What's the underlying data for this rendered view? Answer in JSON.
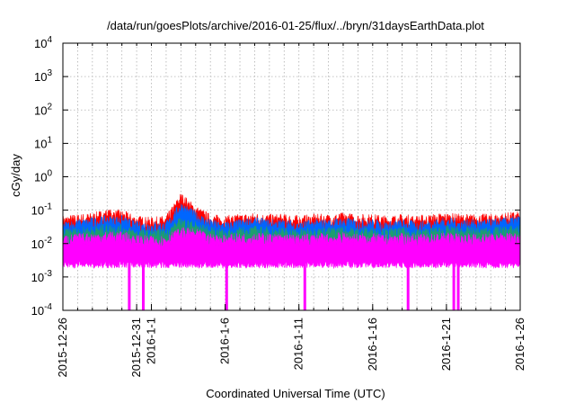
{
  "chart_data": {
    "type": "area",
    "title": "/data/run/goesPlots/archive/2016-01-25/flux/../bryn/31daysEarthData.plot",
    "xlabel": "Coordinated Universal Time (UTC)",
    "ylabel": "cGy/day",
    "y_scale": "log",
    "ylim": [
      0.0001,
      10000
    ],
    "xlim": [
      "2015-12-26",
      "2016-01-26"
    ],
    "grid": true,
    "x_ticks": [
      "2015-12-26",
      "2015-12-31",
      "2016-1-1",
      "2016-1-6",
      "2016-1-11",
      "2016-1-16",
      "2016-1-21",
      "2016-1-26"
    ],
    "x_tick_days": [
      0,
      5,
      6,
      11,
      16,
      21,
      26,
      31
    ],
    "y_ticks": [
      {
        "value": 0.0001,
        "mantissa": "10",
        "exp": "-4"
      },
      {
        "value": 0.001,
        "mantissa": "10",
        "exp": "-3"
      },
      {
        "value": 0.01,
        "mantissa": "10",
        "exp": "-2"
      },
      {
        "value": 0.1,
        "mantissa": "10",
        "exp": "-1"
      },
      {
        "value": 1,
        "mantissa": "10",
        "exp": "0"
      },
      {
        "value": 10,
        "mantissa": "10",
        "exp": "1"
      },
      {
        "value": 100,
        "mantissa": "10",
        "exp": "2"
      },
      {
        "value": 1000,
        "mantissa": "10",
        "exp": "3"
      },
      {
        "value": 10000,
        "mantissa": "10",
        "exp": "4"
      }
    ],
    "series": [
      {
        "color": "#ff0000",
        "values": [
          0.045,
          0.05,
          0.055,
          0.07,
          0.065,
          0.045,
          0.04,
          0.045,
          0.22,
          0.09,
          0.05,
          0.045,
          0.05,
          0.055,
          0.05,
          0.05,
          0.045,
          0.05,
          0.05,
          0.055,
          0.05,
          0.05,
          0.045,
          0.05,
          0.045,
          0.05,
          0.055,
          0.05,
          0.05,
          0.05,
          0.055,
          0.06
        ]
      },
      {
        "color": "#0066ff",
        "values": [
          0.03,
          0.035,
          0.04,
          0.045,
          0.045,
          0.03,
          0.03,
          0.03,
          0.12,
          0.06,
          0.035,
          0.03,
          0.035,
          0.04,
          0.035,
          0.035,
          0.03,
          0.035,
          0.035,
          0.04,
          0.035,
          0.035,
          0.03,
          0.035,
          0.03,
          0.035,
          0.04,
          0.035,
          0.035,
          0.035,
          0.04,
          0.045
        ]
      },
      {
        "color": "#1e9e6e",
        "values": [
          0.018,
          0.02,
          0.022,
          0.025,
          0.024,
          0.018,
          0.017,
          0.018,
          0.04,
          0.03,
          0.02,
          0.018,
          0.02,
          0.022,
          0.02,
          0.02,
          0.018,
          0.02,
          0.02,
          0.022,
          0.02,
          0.02,
          0.018,
          0.02,
          0.018,
          0.02,
          0.022,
          0.02,
          0.02,
          0.02,
          0.022,
          0.024
        ]
      },
      {
        "color": "#ff00ff",
        "values": [
          0.012,
          0.013,
          0.014,
          0.015,
          0.015,
          0.012,
          0.011,
          0.012,
          0.02,
          0.018,
          0.013,
          0.012,
          0.013,
          0.014,
          0.013,
          0.013,
          0.012,
          0.013,
          0.013,
          0.014,
          0.013,
          0.013,
          0.012,
          0.013,
          0.012,
          0.013,
          0.014,
          0.013,
          0.013,
          0.013,
          0.014,
          0.015
        ]
      }
    ],
    "floor_value": 0.003,
    "dropouts_days": [
      4.5,
      5.45,
      11.1,
      16.4,
      23.4,
      26.5,
      26.8
    ]
  }
}
